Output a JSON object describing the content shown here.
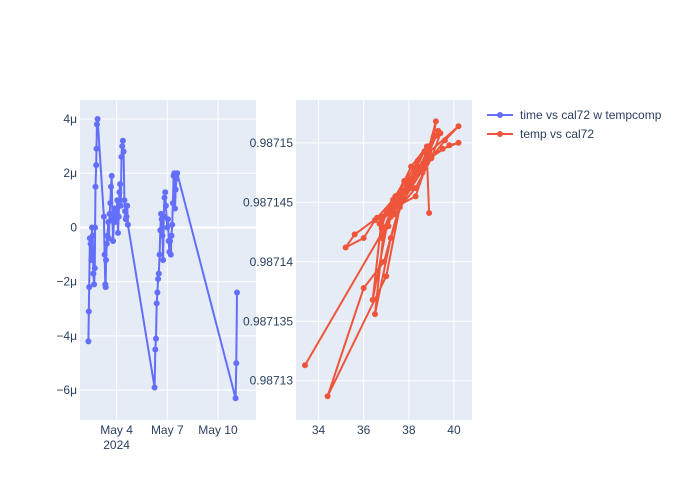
{
  "chart_data": [
    {
      "type": "line",
      "panel": "left",
      "series_name": "time vs cal72 w tempcomp",
      "color": "#636efa",
      "x_axis": {
        "type": "date",
        "range": [
          "2024-05-01T20:00",
          "2024-05-12T06:00"
        ],
        "ticks": [
          {
            "value": "2024-05-04T00:00",
            "label": "May 4",
            "sublabel": "2024"
          },
          {
            "value": "2024-05-07T00:00",
            "label": "May 7",
            "sublabel": ""
          },
          {
            "value": "2024-05-10T00:00",
            "label": "May 10",
            "sublabel": ""
          }
        ]
      },
      "y_axis": {
        "range": [
          -7.1e-06,
          4.7e-06
        ],
        "ticks": [
          {
            "value": -6e-06,
            "label": "−6μ"
          },
          {
            "value": -4e-06,
            "label": "−4μ"
          },
          {
            "value": -2e-06,
            "label": "−2μ"
          },
          {
            "value": 0,
            "label": "0"
          },
          {
            "value": 2e-06,
            "label": "2μ"
          },
          {
            "value": 4e-06,
            "label": "4μ"
          }
        ]
      },
      "points": [
        [
          "2024-05-02T08:00",
          -4.2e-06
        ],
        [
          "2024-05-02T08:30",
          -3.1e-06
        ],
        [
          "2024-05-02T09:00",
          -2.2e-06
        ],
        [
          "2024-05-02T10:00",
          -4e-07
        ],
        [
          "2024-05-02T11:00",
          -6e-07
        ],
        [
          "2024-05-02T12:00",
          -1.2e-06
        ],
        [
          "2024-05-02T13:00",
          0.0
        ],
        [
          "2024-05-02T14:00",
          -3e-07
        ],
        [
          "2024-05-02T15:00",
          -1.7e-06
        ],
        [
          "2024-05-02T16:00",
          -2.1e-06
        ],
        [
          "2024-05-02T17:00",
          -1.5e-06
        ],
        [
          "2024-05-02T17:30",
          0.0
        ],
        [
          "2024-05-02T18:00",
          1.5e-06
        ],
        [
          "2024-05-02T19:00",
          2.3e-06
        ],
        [
          "2024-05-02T19:30",
          2.9e-06
        ],
        [
          "2024-05-02T20:00",
          3.8e-06
        ],
        [
          "2024-05-02T21:00",
          4e-06
        ],
        [
          "2024-05-03T06:00",
          4e-07
        ],
        [
          "2024-05-03T07:00",
          -1e-06
        ],
        [
          "2024-05-03T08:00",
          -2.1e-06
        ],
        [
          "2024-05-03T08:30",
          -2.2e-06
        ],
        [
          "2024-05-03T09:00",
          -1.2e-06
        ],
        [
          "2024-05-03T10:00",
          -6e-07
        ],
        [
          "2024-05-03T11:00",
          -3e-07
        ],
        [
          "2024-05-03T12:00",
          2e-07
        ],
        [
          "2024-05-03T13:00",
          -4e-07
        ],
        [
          "2024-05-03T14:00",
          5e-07
        ],
        [
          "2024-05-03T15:00",
          9e-07
        ],
        [
          "2024-05-03T16:00",
          1.5e-06
        ],
        [
          "2024-05-03T17:00",
          1.9e-06
        ],
        [
          "2024-05-03T18:00",
          3e-07
        ],
        [
          "2024-05-03T19:00",
          -5e-07
        ],
        [
          "2024-05-03T20:00",
          2e-07
        ],
        [
          "2024-05-03T21:00",
          7e-07
        ],
        [
          "2024-05-03T22:00",
          2e-07
        ],
        [
          "2024-05-04T00:00",
          6e-07
        ],
        [
          "2024-05-04T01:00",
          1e-06
        ],
        [
          "2024-05-04T02:00",
          -2e-07
        ],
        [
          "2024-05-04T03:00",
          4e-07
        ],
        [
          "2024-05-04T04:00",
          1.3e-06
        ],
        [
          "2024-05-04T05:00",
          1.6e-06
        ],
        [
          "2024-05-04T06:00",
          8e-07
        ],
        [
          "2024-05-04T07:00",
          2.6e-06
        ],
        [
          "2024-05-04T08:00",
          3e-06
        ],
        [
          "2024-05-04T09:00",
          3.2e-06
        ],
        [
          "2024-05-04T10:00",
          2.8e-06
        ],
        [
          "2024-05-04T11:00",
          1e-06
        ],
        [
          "2024-05-04T12:00",
          6e-07
        ],
        [
          "2024-05-04T13:00",
          3e-07
        ],
        [
          "2024-05-04T14:00",
          4e-07
        ],
        [
          "2024-05-04T15:00",
          8e-07
        ],
        [
          "2024-05-04T16:00",
          1e-07
        ],
        [
          "2024-05-06T06:00",
          -5.9e-06
        ],
        [
          "2024-05-06T07:00",
          -4.5e-06
        ],
        [
          "2024-05-06T08:00",
          -4.1e-06
        ],
        [
          "2024-05-06T09:00",
          -2.8e-06
        ],
        [
          "2024-05-06T10:00",
          -2.4e-06
        ],
        [
          "2024-05-06T11:00",
          -1.9e-06
        ],
        [
          "2024-05-06T12:00",
          -1.7e-06
        ],
        [
          "2024-05-06T13:00",
          -1e-06
        ],
        [
          "2024-05-06T14:00",
          -1e-07
        ],
        [
          "2024-05-06T15:00",
          5e-07
        ],
        [
          "2024-05-06T16:00",
          3e-07
        ],
        [
          "2024-05-06T17:00",
          -3e-07
        ],
        [
          "2024-05-06T18:00",
          -1.2e-06
        ],
        [
          "2024-05-06T19:00",
          4e-07
        ],
        [
          "2024-05-06T20:00",
          1.1e-06
        ],
        [
          "2024-05-06T21:00",
          1.3e-06
        ],
        [
          "2024-05-06T22:00",
          8e-07
        ],
        [
          "2024-05-07T00:00",
          0.0
        ],
        [
          "2024-05-07T01:00",
          3e-07
        ],
        [
          "2024-05-07T02:00",
          -5e-07
        ],
        [
          "2024-05-07T03:00",
          -9e-07
        ],
        [
          "2024-05-07T04:00",
          -5e-07
        ],
        [
          "2024-05-07T05:00",
          -1e-06
        ],
        [
          "2024-05-07T06:00",
          -3e-07
        ],
        [
          "2024-05-07T07:00",
          1e-07
        ],
        [
          "2024-05-07T08:00",
          9e-07
        ],
        [
          "2024-05-07T09:00",
          1.9e-06
        ],
        [
          "2024-05-07T10:00",
          2e-06
        ],
        [
          "2024-05-07T11:00",
          7e-07
        ],
        [
          "2024-05-07T12:00",
          1.4e-06
        ],
        [
          "2024-05-07T13:00",
          1.8e-06
        ],
        [
          "2024-05-07T14:00",
          2e-06
        ],
        [
          "2024-05-11T01:00",
          -6.3e-06
        ],
        [
          "2024-05-11T02:00",
          -5e-06
        ],
        [
          "2024-05-11T03:00",
          -2.4e-06
        ]
      ]
    },
    {
      "type": "scatter",
      "panel": "right",
      "mode": "lines+markers",
      "series_name": "temp vs cal72",
      "color": "#ef553b",
      "x_axis": {
        "range": [
          33.0,
          40.8
        ],
        "ticks": [
          {
            "value": 34,
            "label": "34"
          },
          {
            "value": 36,
            "label": "36"
          },
          {
            "value": 38,
            "label": "38"
          },
          {
            "value": 40,
            "label": "40"
          }
        ]
      },
      "y_axis": {
        "range": [
          0.9871267,
          0.9871536
        ],
        "ticks": [
          {
            "value": 0.98713,
            "label": "0.98713"
          },
          {
            "value": 0.987135,
            "label": "0.987135"
          },
          {
            "value": 0.98714,
            "label": "0.98714"
          },
          {
            "value": 0.987145,
            "label": "0.987145"
          },
          {
            "value": 0.98715,
            "label": "0.98715"
          }
        ]
      },
      "points": [
        [
          33.4,
          0.9871313
        ],
        [
          37.9,
          0.987146
        ],
        [
          38.5,
          0.987148
        ],
        [
          38.8,
          0.987149
        ],
        [
          39.1,
          0.9871505
        ],
        [
          39.2,
          0.9871518
        ],
        [
          38.6,
          0.9871475
        ],
        [
          37.8,
          0.9871468
        ],
        [
          37.4,
          0.9871455
        ],
        [
          37.1,
          0.987143
        ],
        [
          36.8,
          0.987142
        ],
        [
          37.2,
          0.9871438
        ],
        [
          37.6,
          0.987145
        ],
        [
          38.1,
          0.9871465
        ],
        [
          38.4,
          0.9871478
        ],
        [
          38.9,
          0.9871492
        ],
        [
          39.3,
          0.987151
        ],
        [
          38.2,
          0.987147
        ],
        [
          37.5,
          0.9871448
        ],
        [
          36.5,
          0.9871435
        ],
        [
          36.0,
          0.987142
        ],
        [
          35.2,
          0.9871412
        ],
        [
          35.6,
          0.9871423
        ],
        [
          36.6,
          0.9871437
        ],
        [
          37.3,
          0.9871452
        ],
        [
          38.0,
          0.9871466
        ],
        [
          38.7,
          0.9871485
        ],
        [
          39.5,
          0.9871495
        ],
        [
          40.2,
          0.98715
        ],
        [
          39.8,
          0.9871498
        ],
        [
          39.0,
          0.9871488
        ],
        [
          38.3,
          0.9871472
        ],
        [
          37.7,
          0.9871458
        ],
        [
          37.0,
          0.9871443
        ],
        [
          36.8,
          0.9871428
        ],
        [
          37.4,
          0.987144
        ],
        [
          38.1,
          0.9871462
        ],
        [
          38.8,
          0.9871483
        ],
        [
          38.3,
          0.9871455
        ],
        [
          37.6,
          0.9871448
        ],
        [
          36.9,
          0.98714
        ],
        [
          36.0,
          0.9871378
        ],
        [
          34.4,
          0.9871287
        ],
        [
          37.0,
          0.9871388
        ],
        [
          37.6,
          0.9871446
        ],
        [
          38.3,
          0.9871462
        ],
        [
          39.0,
          0.9871487
        ],
        [
          39.4,
          0.9871508
        ],
        [
          38.8,
          0.9871497
        ],
        [
          38.1,
          0.987148
        ],
        [
          37.5,
          0.9871456
        ],
        [
          36.9,
          0.9871428
        ],
        [
          36.5,
          0.9871356
        ],
        [
          37.2,
          0.987142
        ],
        [
          38.0,
          0.9871468
        ],
        [
          38.7,
          0.9871493
        ],
        [
          39.2,
          0.9871506
        ],
        [
          38.4,
          0.9871485
        ],
        [
          37.8,
          0.9871466
        ],
        [
          37.2,
          0.9871447
        ],
        [
          36.7,
          0.9871432
        ],
        [
          37.3,
          0.9871445
        ],
        [
          38.1,
          0.987147
        ],
        [
          38.9,
          0.9871492
        ],
        [
          40.2,
          0.9871514
        ],
        [
          39.6,
          0.9871502
        ],
        [
          38.6,
          0.9871478
        ],
        [
          37.9,
          0.9871462
        ],
        [
          37.2,
          0.9871447
        ],
        [
          36.4,
          0.9871368
        ],
        [
          36.8,
          0.9871436
        ],
        [
          37.5,
          0.9871453
        ],
        [
          38.2,
          0.9871468
        ],
        [
          38.8,
          0.9871488
        ],
        [
          38.9,
          0.9871441
        ]
      ]
    }
  ]
}
